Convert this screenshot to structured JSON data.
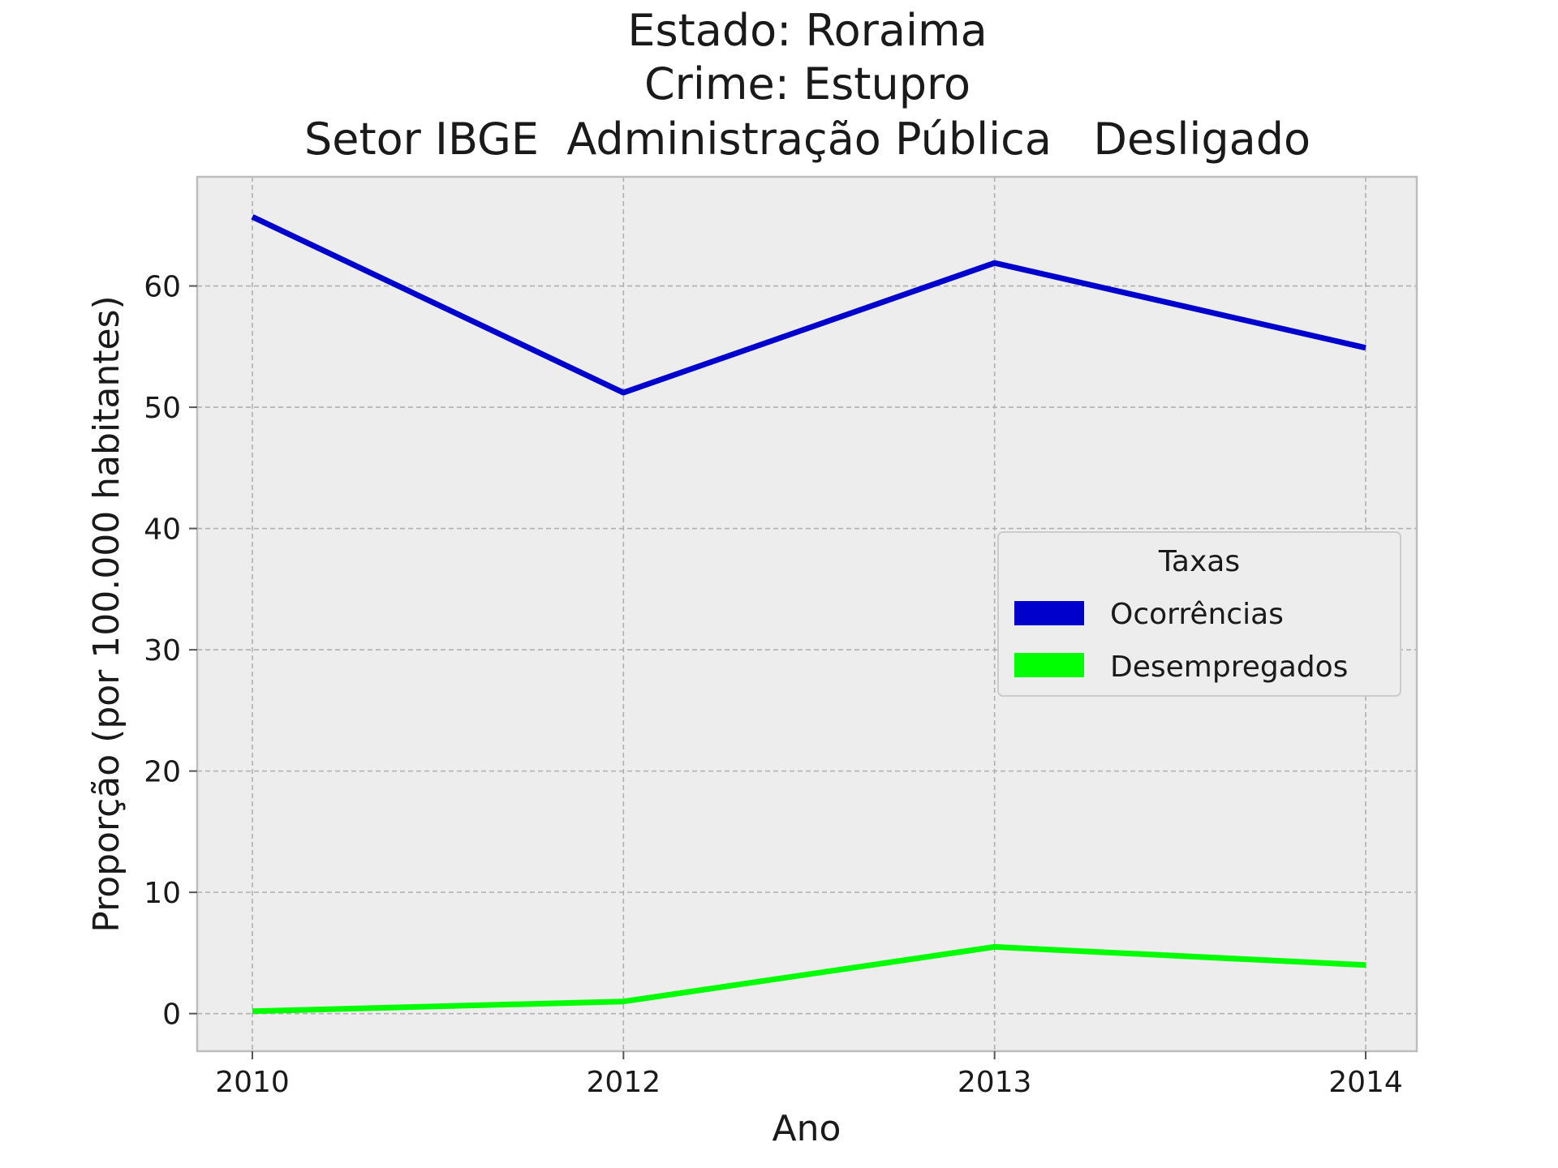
{
  "chart_data": {
    "type": "line",
    "title_lines": [
      "Estado: Roraima",
      "Crime: Estupro",
      "Setor IBGE  Administração Pública   Desligado"
    ],
    "xlabel": "Ano",
    "ylabel": "Proporção (por 100.000 habitantes)",
    "categories": [
      "2010",
      "2012",
      "2013",
      "2014"
    ],
    "yticks": [
      0,
      10,
      20,
      30,
      40,
      50,
      60
    ],
    "ylim": [
      -3.1,
      69.0
    ],
    "grid": true,
    "legend": {
      "title": "Taxas",
      "placement": "center-right"
    },
    "series": [
      {
        "name": "Ocorrências",
        "color": "#0000cc",
        "values": [
          65.7,
          51.2,
          61.9,
          54.9
        ]
      },
      {
        "name": "Desempregados",
        "color": "#00ff00",
        "values": [
          0.2,
          1.0,
          5.5,
          4.0
        ]
      }
    ]
  },
  "colors": {
    "plot_background": "#ededed",
    "frame": "#bdbdbd"
  }
}
